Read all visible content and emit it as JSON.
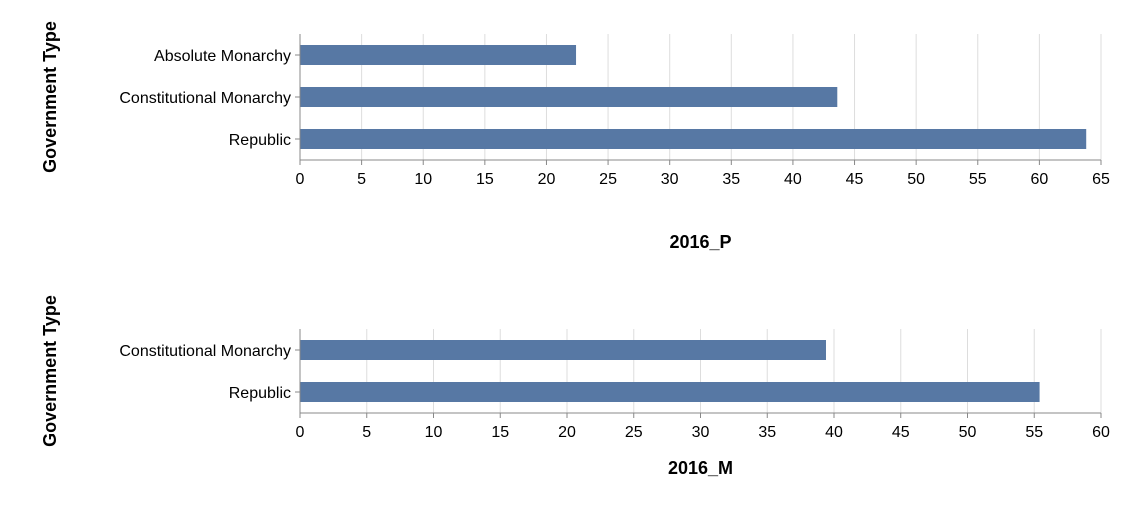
{
  "chart_data": [
    {
      "type": "bar",
      "orientation": "horizontal",
      "categories": [
        "Absolute Monarchy",
        "Constitutional Monarchy",
        "Republic"
      ],
      "values": [
        22.4,
        43.6,
        63.8
      ],
      "xlabel": "2016_P",
      "ylabel": "Government Type",
      "xlim": [
        0,
        65
      ],
      "xticks": [
        0,
        5,
        10,
        15,
        20,
        25,
        30,
        35,
        40,
        45,
        50,
        55,
        60,
        65
      ],
      "grid": true,
      "bar_color": "#5778a4"
    },
    {
      "type": "bar",
      "orientation": "horizontal",
      "categories": [
        "Constitutional Monarchy",
        "Republic"
      ],
      "values": [
        39.4,
        55.4
      ],
      "xlabel": "2016_M",
      "ylabel": "Government Type",
      "xlim": [
        0,
        60
      ],
      "xticks": [
        0,
        5,
        10,
        15,
        20,
        25,
        30,
        35,
        40,
        45,
        50,
        55,
        60
      ],
      "grid": true,
      "bar_color": "#5778a4"
    }
  ]
}
